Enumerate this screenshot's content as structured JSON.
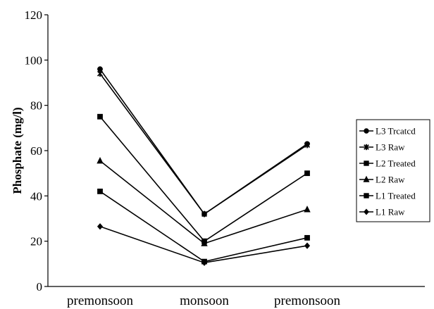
{
  "chart_data": {
    "type": "line",
    "title": "",
    "xlabel": "",
    "ylabel": "Phosphate (mg/l)",
    "categories": [
      "premonsoon",
      "monsoon",
      "premonsoon"
    ],
    "ylim": [
      0,
      120
    ],
    "yticks": [
      0,
      20,
      40,
      60,
      80,
      100,
      120
    ],
    "grid": false,
    "legend_position": "right",
    "series": [
      {
        "name": "L3 Trcatcd",
        "marker": "circle",
        "values": [
          96,
          32,
          63
        ]
      },
      {
        "name": "L3 Raw",
        "marker": "star",
        "values": [
          94,
          32,
          62.5
        ]
      },
      {
        "name": "L2 Treated",
        "marker": "square",
        "values": [
          75,
          20,
          50
        ]
      },
      {
        "name": "L2 Raw",
        "marker": "triangle",
        "values": [
          55.5,
          19,
          34
        ]
      },
      {
        "name": "L1 Treated",
        "marker": "square",
        "values": [
          42,
          11,
          21.5
        ]
      },
      {
        "name": "L1 Raw",
        "marker": "diamond",
        "values": [
          26.5,
          10.5,
          18
        ]
      }
    ]
  }
}
